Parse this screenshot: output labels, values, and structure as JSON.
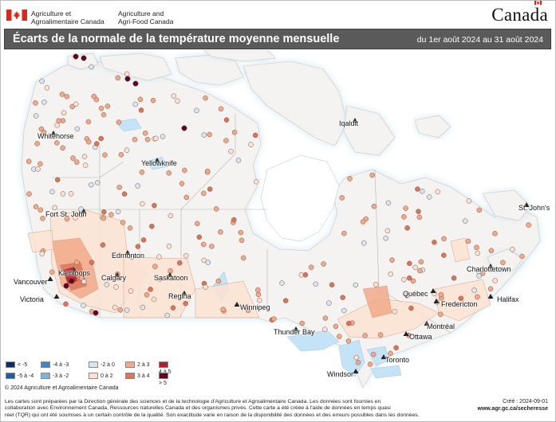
{
  "header": {
    "dept_fr_line1": "Agriculture et",
    "dept_fr_line2": "Agroalimentaire Canada",
    "dept_en_line1": "Agriculture and",
    "dept_en_line2": "Agri-Food Canada",
    "wordmark": "Canada",
    "flag_red": "#d52b1e"
  },
  "titlebar": {
    "title": "Écarts de la normale de la température moyenne mensuelle",
    "dates": "du 1er août 2024 au 31 août 2024",
    "background": "#5a5a5a"
  },
  "map": {
    "land_color": "#f4f3f1",
    "water_color": "#ffffff",
    "glow_color": "#cfe6f5",
    "lake_color": "#c5e3f6",
    "us_color": "#ffffff",
    "cities": [
      {
        "name": "Whitehorse"
      },
      {
        "name": "Yellowknife"
      },
      {
        "name": "Iqaluit"
      },
      {
        "name": "Fort St. John"
      },
      {
        "name": "Edmonton"
      },
      {
        "name": "Kamloops"
      },
      {
        "name": "Vancouver"
      },
      {
        "name": "Victoria"
      },
      {
        "name": "Calgary"
      },
      {
        "name": "Saskatoon"
      },
      {
        "name": "Regina"
      },
      {
        "name": "Winnipeg"
      },
      {
        "name": "Thunder Bay"
      },
      {
        "name": "Québec"
      },
      {
        "name": "Charlottetown"
      },
      {
        "name": "Fredericton"
      },
      {
        "name": "Halifax"
      },
      {
        "name": "St. John's"
      },
      {
        "name": "Montréal"
      },
      {
        "name": "Ottawa"
      },
      {
        "name": "Toronto"
      },
      {
        "name": "Windsor"
      }
    ]
  },
  "legend": {
    "items": [
      {
        "label": "< -5",
        "color": "#0b2d6b"
      },
      {
        "label": "-5 à -4",
        "color": "#1f5fa5"
      },
      {
        "label": "-4 à -3",
        "color": "#3f87c4"
      },
      {
        "label": "-3 à -2",
        "color": "#7fb3dc"
      },
      {
        "label": "-2 à 0",
        "color": "#d6e6f2"
      },
      {
        "label": "0 à 2",
        "color": "#fbe2d2"
      },
      {
        "label": "2 à 3",
        "color": "#f2a98a"
      },
      {
        "label": "3 à 4",
        "color": "#d9765a"
      },
      {
        "label": "4 à 5",
        "color": "#b41d2c"
      },
      {
        "label": "> 5",
        "color": "#67001f"
      }
    ]
  },
  "footer": {
    "copyright": "© 2024 Agriculture et Agroalimentaire Canada",
    "note_line1": "Les cartes sont préparées par la Direction générale des sciences et de la technologie d'Agriculture et Agroalimentaire Canada. Les données sont fournies en",
    "note_line2": "collaboration avec Environnement Canada, Ressources naturelles Canada et des organismes privés. Cette carte a été créée à l'aide de données en temps quasi",
    "note_line3": "réel (TQR) qui ont été soumises à un certain contrôle de la qualité. Son exactitude varie en raison de la disponibilité des données et des erreurs possibles dans les données.",
    "created": "Créé : 2024-09-01",
    "url": "www.agr.gc.ca/secheresse"
  }
}
